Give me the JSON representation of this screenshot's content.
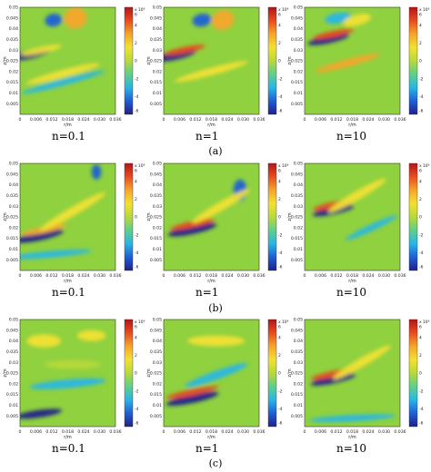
{
  "chart_data": {
    "type": "heatmap",
    "xlabel": "r/m",
    "ylabel": "z/m",
    "x_ticks": [
      "0",
      "0.006",
      "0.012",
      "0.018",
      "0.024",
      "0.030",
      "0.036"
    ],
    "y_ticks": [
      "0.05",
      "0.045",
      "0.04",
      "0.035",
      "0.03",
      "0.025",
      "0.02",
      "0.015",
      "0.01",
      "0.005"
    ],
    "xlim": [
      0,
      0.036
    ],
    "ylim": [
      0,
      0.05
    ],
    "colorbar": {
      "ticks": [
        "6",
        "4",
        "2",
        "0",
        "-2",
        "-4",
        "-6"
      ],
      "range": [
        -6,
        6
      ],
      "scale_label": "x 10⁶",
      "colors": [
        "#20208a",
        "#1f5fd6",
        "#27b6e6",
        "#5fcf8a",
        "#b8d93a",
        "#f2e133",
        "#f5a52a",
        "#e84c1e",
        "#b3141a"
      ]
    },
    "background_color": "#8fd13f",
    "rows": [
      {
        "label": "(a)",
        "panels": [
          {
            "n_label": "n=0.1",
            "n": 0.1
          },
          {
            "n_label": "n=1",
            "n": 1
          },
          {
            "n_label": "n=10",
            "n": 10
          }
        ]
      },
      {
        "label": "(b)",
        "panels": [
          {
            "n_label": "n=0.1",
            "n": 0.1
          },
          {
            "n_label": "n=1",
            "n": 1
          },
          {
            "n_label": "n=10",
            "n": 10
          }
        ]
      },
      {
        "label": "(c)",
        "panels": [
          {
            "n_label": "n=0.1",
            "n": 0.1
          },
          {
            "n_label": "n=1",
            "n": 1
          },
          {
            "n_label": "n=10",
            "n": 10
          }
        ]
      }
    ]
  }
}
